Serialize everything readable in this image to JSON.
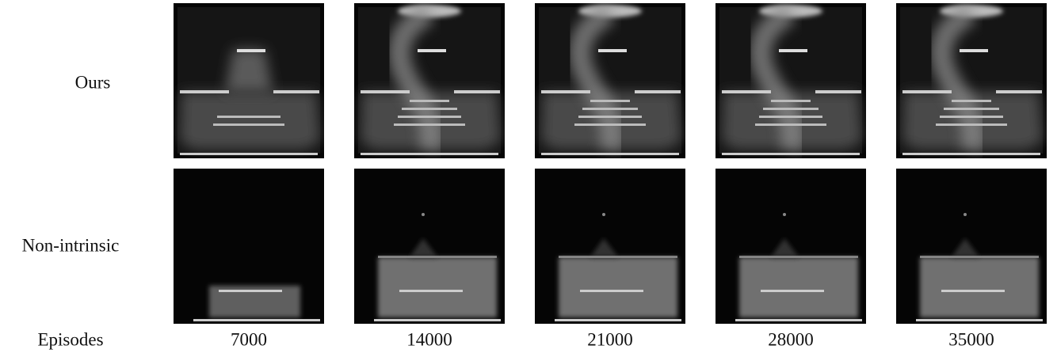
{
  "figure": {
    "row_labels": [
      "Ours",
      "Non-intrinsic"
    ],
    "column_label": "Episodes",
    "columns": [
      "7000",
      "14000",
      "21000",
      "28000",
      "35000"
    ]
  }
}
